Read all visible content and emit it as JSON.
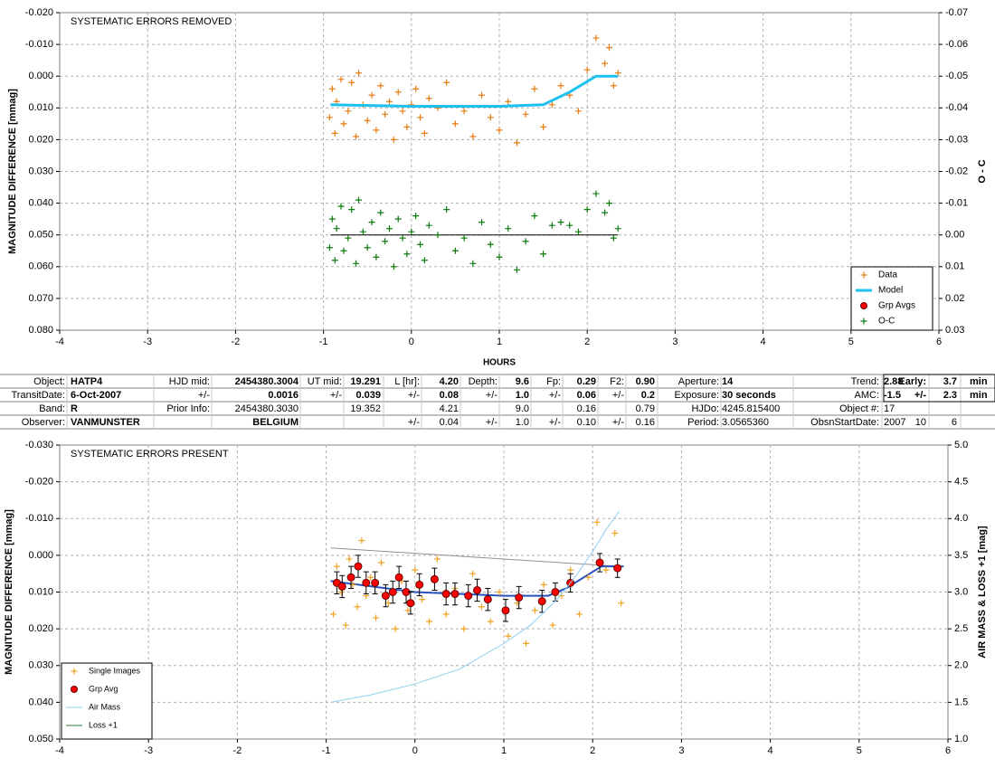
{
  "chart_data": [
    {
      "type": "scatter",
      "title": "SYSTEMATIC ERRORS REMOVED",
      "x_label": "HOURS",
      "y_label": "MAGNITUDE DIFFERENCE [mmag]",
      "y2_label": "O - C",
      "xlim": [
        -4,
        6
      ],
      "xticks": [
        -4,
        -3,
        -2,
        -1,
        0,
        1,
        2,
        3,
        4,
        5,
        6
      ],
      "ylim": [
        -0.02,
        0.08
      ],
      "y_inverted": true,
      "yticks": [
        {
          "value": -0.02,
          "label": "-0.020"
        },
        {
          "value": -0.01,
          "label": "-0.010"
        },
        {
          "value": 0,
          "label": "0.000"
        },
        {
          "value": 0.01,
          "label": "0.010"
        },
        {
          "value": 0.02,
          "label": "0.020"
        },
        {
          "value": 0.03,
          "label": "0.030"
        },
        {
          "value": 0.04,
          "label": "0.040"
        },
        {
          "value": 0.05,
          "label": "0.050"
        },
        {
          "value": 0.06,
          "label": "0.060"
        },
        {
          "value": 0.07,
          "label": "0.070"
        },
        {
          "value": 0.08,
          "label": "0.080"
        }
      ],
      "y2lim": [
        -0.07,
        0.03
      ],
      "y2_inverted": true,
      "y2ticks": [
        -0.07,
        -0.06,
        -0.05,
        -0.04,
        -0.03,
        -0.02,
        -0.01,
        {
          "value": 0,
          "label": "0.00"
        },
        0.01,
        0.02,
        0.03
      ],
      "grid": true,
      "legend": "lower right",
      "series": [
        {
          "name": "Data",
          "color": "#e87b12",
          "marker": "plus",
          "x": [
            -0.93,
            -0.9,
            -0.87,
            -0.85,
            -0.8,
            -0.77,
            -0.72,
            -0.68,
            -0.63,
            -0.6,
            -0.55,
            -0.5,
            -0.45,
            -0.4,
            -0.35,
            -0.3,
            -0.25,
            -0.2,
            -0.15,
            -0.1,
            -0.05,
            0.0,
            0.05,
            0.1,
            0.15,
            0.2,
            0.3,
            0.4,
            0.5,
            0.6,
            0.7,
            0.8,
            0.9,
            1.0,
            1.1,
            1.2,
            1.3,
            1.4,
            1.5,
            1.6,
            1.7,
            1.8,
            1.9,
            2.0,
            2.1,
            2.2,
            2.25,
            2.3,
            2.35
          ],
          "values": [
            0.013,
            0.004,
            0.018,
            0.008,
            0.001,
            0.015,
            0.011,
            0.002,
            0.019,
            -0.001,
            0.009,
            0.014,
            0.006,
            0.017,
            0.003,
            0.012,
            0.008,
            0.02,
            0.005,
            0.011,
            0.016,
            0.009,
            0.004,
            0.013,
            0.018,
            0.007,
            0.01,
            0.002,
            0.015,
            0.011,
            0.019,
            0.006,
            0.013,
            0.017,
            0.008,
            0.021,
            0.012,
            0.004,
            0.016,
            0.009,
            0.003,
            0.006,
            0.011,
            -0.002,
            -0.012,
            -0.004,
            -0.009,
            0.003,
            -0.001
          ]
        },
        {
          "name": "Model",
          "color": "#1ec0f0",
          "marker": "line",
          "x": [
            -0.92,
            0,
            1,
            1.5,
            1.8,
            2.1,
            2.35
          ],
          "values": [
            0.009,
            0.0095,
            0.0095,
            0.009,
            0.005,
            0.0,
            0.0
          ]
        },
        {
          "name": "Grp Avgs",
          "color": "#ff0000",
          "marker": "dot",
          "x": [],
          "values": []
        },
        {
          "name": "O-C",
          "color": "#0c7a0c",
          "marker": "plus",
          "axis": "y2",
          "x": [
            -0.93,
            -0.9,
            -0.87,
            -0.85,
            -0.8,
            -0.77,
            -0.72,
            -0.68,
            -0.63,
            -0.6,
            -0.55,
            -0.5,
            -0.45,
            -0.4,
            -0.35,
            -0.3,
            -0.25,
            -0.2,
            -0.15,
            -0.1,
            -0.05,
            0.0,
            0.05,
            0.1,
            0.15,
            0.2,
            0.3,
            0.4,
            0.5,
            0.6,
            0.7,
            0.8,
            0.9,
            1.0,
            1.1,
            1.2,
            1.3,
            1.4,
            1.5,
            1.6,
            1.7,
            1.8,
            1.9,
            2.0,
            2.1,
            2.2,
            2.25,
            2.3,
            2.35
          ],
          "values": [
            0.004,
            -0.005,
            0.008,
            -0.002,
            -0.009,
            0.005,
            0.001,
            -0.008,
            0.009,
            -0.011,
            -0.001,
            0.004,
            -0.004,
            0.007,
            -0.007,
            0.002,
            -0.002,
            0.01,
            -0.005,
            0.001,
            0.006,
            -0.001,
            -0.006,
            0.003,
            0.008,
            -0.003,
            0.0,
            -0.008,
            0.005,
            0.001,
            0.009,
            -0.004,
            0.003,
            0.007,
            -0.002,
            0.011,
            0.002,
            -0.006,
            0.006,
            -0.003,
            -0.004,
            -0.003,
            -0.001,
            -0.008,
            -0.013,
            -0.007,
            -0.01,
            0.001,
            -0.002
          ]
        }
      ],
      "lines": [
        {
          "color": "#000000",
          "axis": "y2",
          "x": [
            -0.92,
            2.35
          ],
          "values": [
            0,
            0
          ]
        }
      ]
    },
    {
      "type": "scatter",
      "title": "SYSTEMATIC ERRORS PRESENT",
      "y_label": "MAGNITUDE DIFFERENCE [mmag]",
      "y2_label": "AIR MASS & LOSS +1 [mag]",
      "xlim": [
        -4,
        6
      ],
      "xticks": [
        -4,
        -3,
        -2,
        -1,
        0,
        1,
        2,
        3,
        4,
        5,
        6
      ],
      "ylim": [
        -0.03,
        0.05
      ],
      "y_inverted": true,
      "yticks": [
        {
          "value": -0.03,
          "label": "-0.030"
        },
        {
          "value": -0.02,
          "label": "-0.020"
        },
        {
          "value": -0.01,
          "label": "-0.010"
        },
        {
          "value": 0,
          "label": "0.000"
        },
        {
          "value": 0.01,
          "label": "0.010"
        },
        {
          "value": 0.02,
          "label": "0.020"
        },
        {
          "value": 0.03,
          "label": "0.030"
        },
        {
          "value": 0.04,
          "label": "0.040"
        },
        {
          "value": 0.05,
          "label": "0.050"
        }
      ],
      "y2lim": [
        1,
        5
      ],
      "y2ticks": [
        {
          "value": 1,
          "label": "1.0"
        },
        1.5,
        {
          "value": 2,
          "label": "2.0"
        },
        2.5,
        {
          "value": 3,
          "label": "3.0"
        },
        3.5,
        {
          "value": 4,
          "label": "4.0"
        },
        4.5,
        {
          "value": 5,
          "label": "5.0"
        }
      ],
      "grid": true,
      "legend": "lower left",
      "series": [
        {
          "name": "Single Images",
          "color": "#f0a020",
          "marker": "plus",
          "x": [
            -0.92,
            -0.88,
            -0.83,
            -0.78,
            -0.74,
            -0.7,
            -0.65,
            -0.6,
            -0.55,
            -0.5,
            -0.44,
            -0.38,
            -0.3,
            -0.22,
            -0.15,
            -0.08,
            0.0,
            0.08,
            0.16,
            0.25,
            0.35,
            0.45,
            0.55,
            0.65,
            0.75,
            0.85,
            0.95,
            1.05,
            1.15,
            1.25,
            1.35,
            1.45,
            1.55,
            1.65,
            1.75,
            1.85,
            1.95,
            2.05,
            2.15,
            2.25,
            2.32
          ],
          "values": [
            0.016,
            0.003,
            0.01,
            0.019,
            0.001,
            0.008,
            0.014,
            -0.004,
            0.011,
            0.006,
            0.017,
            0.002,
            0.013,
            0.02,
            0.007,
            0.015,
            0.004,
            0.012,
            0.018,
            0.001,
            0.016,
            0.009,
            0.02,
            0.005,
            0.014,
            0.018,
            0.01,
            0.022,
            0.013,
            0.024,
            0.015,
            0.008,
            0.019,
            0.011,
            0.004,
            0.016,
            0.006,
            -0.009,
            0.004,
            -0.006,
            0.013
          ]
        },
        {
          "name": "Grp Avg",
          "color": "#ff0000",
          "marker": "dot",
          "x": [
            -0.88,
            -0.82,
            -0.72,
            -0.64,
            -0.55,
            -0.45,
            -0.33,
            -0.25,
            -0.18,
            -0.1,
            -0.05,
            0.05,
            0.22,
            0.35,
            0.45,
            0.6,
            0.7,
            0.82,
            1.02,
            1.17,
            1.43,
            1.58,
            1.75,
            2.08,
            2.28
          ],
          "values": [
            0.0075,
            0.0085,
            0.006,
            0.003,
            0.0075,
            0.0075,
            0.011,
            0.01,
            0.006,
            0.01,
            0.013,
            0.008,
            0.0065,
            0.0105,
            0.0105,
            0.011,
            0.0095,
            0.012,
            0.015,
            0.0115,
            0.0125,
            0.01,
            0.0075,
            0.002,
            0.0035
          ],
          "errors": [
            0.003,
            0.003,
            0.003,
            0.003,
            0.003,
            0.003,
            0.003,
            0.003,
            0.003,
            0.003,
            0.003,
            0.003,
            0.003,
            0.003,
            0.003,
            0.003,
            0.003,
            0.003,
            0.003,
            0.003,
            0.003,
            0.0025,
            0.0025,
            0.0025,
            0.0025
          ]
        },
        {
          "name": "Air Mass",
          "color": "#8fd0f0",
          "marker": "line",
          "axis": "y2",
          "x": [
            -0.95,
            -0.5,
            0,
            0.5,
            1.0,
            1.3,
            1.6,
            1.8,
            2.0,
            2.15,
            2.3
          ],
          "values": [
            1.5,
            1.6,
            1.75,
            1.95,
            2.3,
            2.55,
            2.9,
            3.2,
            3.55,
            3.85,
            4.1
          ]
        },
        {
          "name": "Loss +1",
          "color": "#2e7d32",
          "marker": "line",
          "axis": "y2",
          "x": [],
          "values": []
        }
      ],
      "lines": [
        {
          "color": "#909090",
          "x": [
            -0.95,
            2.3
          ],
          "values": [
            -0.002,
            0.003
          ]
        },
        {
          "color": "#2a52be",
          "x": [
            -0.95,
            0,
            1.0,
            1.5,
            1.7,
            1.9,
            2.1,
            2.35
          ],
          "values": [
            0.007,
            0.01,
            0.011,
            0.011,
            0.009,
            0.006,
            0.003,
            0.003
          ]
        }
      ]
    }
  ],
  "table": {
    "rows": [
      [
        "Object:",
        "HATP4",
        "HJD mid:",
        "2454380.3004",
        "UT mid:",
        "19.291",
        "L [hr]:",
        "4.20",
        "Depth:",
        "9.6",
        "Fp:",
        "0.29",
        "F2:",
        "0.90",
        "Aperture:",
        "14",
        "Trend:",
        "2.88",
        "Early:",
        "3.7",
        "min"
      ],
      [
        "TransitDate:",
        "6-Oct-2007",
        "+/-",
        "0.0016",
        "+/-",
        "0.039",
        "+/-",
        "0.08",
        "+/-",
        "1.0",
        "+/-",
        "0.06",
        "+/-",
        "0.2",
        "Exposure:",
        "30 seconds",
        "AMC:",
        "-1.5",
        "+/-",
        "2.3",
        "min"
      ],
      [
        "Band:",
        "R",
        "Prior Info:",
        "2454380.3030",
        null,
        "19.352",
        null,
        "4.21",
        null,
        "9.0",
        null,
        "0.16",
        null,
        "0.79",
        "HJDo:",
        "4245.815400",
        "Object #:",
        "17",
        null,
        null,
        null
      ],
      [
        "Observer:",
        "VANMUNSTER",
        null,
        "BELGIUM",
        null,
        null,
        "+/-",
        "0.04",
        "+/-",
        "1.0",
        "+/-",
        "0.10",
        "+/-",
        "0.16",
        "Period:",
        "3.0565360",
        "ObsnStartDate:",
        "2007",
        "10",
        "6",
        null
      ]
    ]
  }
}
